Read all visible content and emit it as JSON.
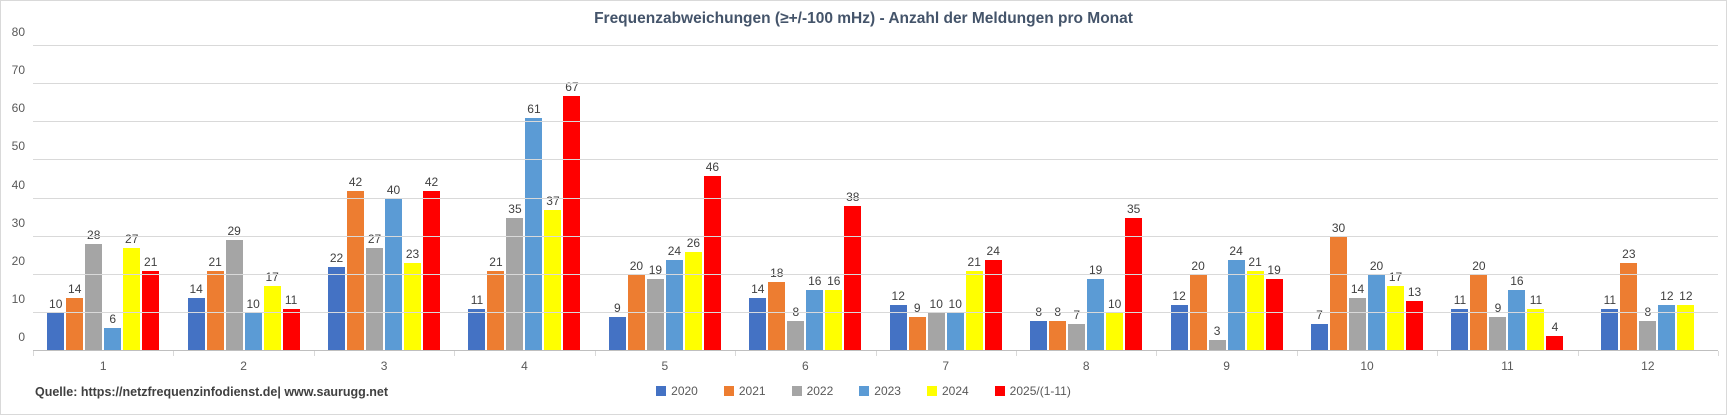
{
  "source_note": "Quelle: https://netzfrequenzinfodienst.de| www.saurugg.net",
  "chart_data": {
    "type": "bar",
    "title": "Frequenzabweichungen (≥+/-100 mHz) - Anzahl der Meldungen pro Monat",
    "xlabel": "",
    "ylabel": "",
    "categories": [
      "1",
      "2",
      "3",
      "4",
      "5",
      "6",
      "7",
      "8",
      "9",
      "10",
      "11",
      "12"
    ],
    "series": [
      {
        "name": "2020",
        "color": "#4472C4",
        "values": [
          10,
          14,
          22,
          11,
          9,
          14,
          12,
          8,
          12,
          7,
          11,
          11
        ]
      },
      {
        "name": "2021",
        "color": "#ED7D31",
        "values": [
          14,
          21,
          42,
          21,
          20,
          18,
          9,
          8,
          20,
          30,
          20,
          23
        ]
      },
      {
        "name": "2022",
        "color": "#A5A5A5",
        "values": [
          28,
          29,
          27,
          35,
          19,
          8,
          10,
          7,
          3,
          14,
          9,
          8
        ]
      },
      {
        "name": "2023",
        "color": "#5B9BD5",
        "values": [
          6,
          10,
          40,
          61,
          24,
          16,
          10,
          19,
          24,
          20,
          16,
          12
        ]
      },
      {
        "name": "2024",
        "color": "#FFFF00",
        "values": [
          27,
          17,
          23,
          37,
          26,
          16,
          21,
          10,
          21,
          17,
          11,
          12
        ]
      },
      {
        "name": "2025/(1-11)",
        "color": "#FF0000",
        "values": [
          21,
          11,
          42,
          67,
          46,
          38,
          24,
          35,
          19,
          13,
          4,
          null
        ]
      }
    ],
    "ylim": [
      0,
      80
    ],
    "yticks": [
      0,
      10,
      20,
      30,
      40,
      50,
      60,
      70,
      80
    ],
    "grid": true,
    "legend_position": "bottom",
    "data_labels": true,
    "colors": {
      "title": "#44546A",
      "axis_text": "#595959",
      "data_label_text": "#404040",
      "gridline": "#D9D9D9"
    }
  }
}
